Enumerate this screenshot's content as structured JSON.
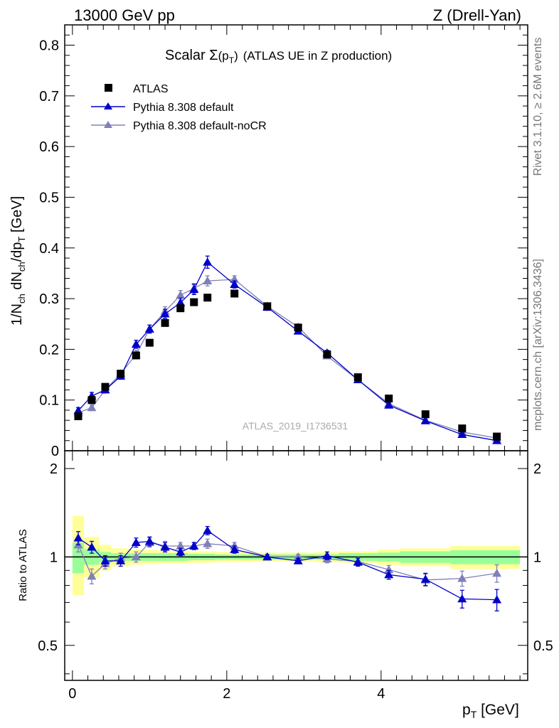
{
  "header": {
    "left": "13000 GeV pp",
    "right": "Z (Drell-Yan)"
  },
  "side_labels": {
    "rivet": "Rivet 3.1.10, ≥ 2.6M events",
    "mcplots": "mcplots.cern.ch [arXiv:1306.3436]"
  },
  "watermark": "ATLAS_2019_I1736531",
  "chart_data": [
    {
      "type": "scatter",
      "title": "Scalar Σ(pT) (ATLAS UE in Z production)",
      "title_parts": {
        "main": "Scalar Σ",
        "arg": "(p",
        "sub": "T",
        "close": ")",
        "rest": "(ATLAS UE in Z production)"
      },
      "ylabel": "1/Nch dNch/dpT [GeV]",
      "ylabel_parts": {
        "a": "1/N",
        "b": "ch",
        "c": " dN",
        "d": "ch",
        "e": "/dp",
        "f": "T",
        "g": " [GeV]"
      },
      "xlim": [
        -0.1,
        5.9
      ],
      "ylim": [
        0,
        0.84
      ],
      "yticks": [
        0,
        0.1,
        0.2,
        0.3,
        0.4,
        0.5,
        0.6,
        0.7,
        0.8
      ],
      "ytick_labels": [
        "0",
        "0.1",
        "0.2",
        "0.3",
        "0.4",
        "0.5",
        "0.6",
        "0.7",
        "0.8"
      ],
      "x": [
        0.075,
        0.25,
        0.425,
        0.625,
        0.825,
        1.0,
        1.2,
        1.4,
        1.575,
        1.75,
        2.1,
        2.525,
        2.925,
        3.3,
        3.7,
        4.1,
        4.575,
        5.05,
        5.5
      ],
      "series": [
        {
          "name": "ATLAS",
          "marker": "square",
          "color": "#000000",
          "values": [
            0.068,
            0.1,
            0.126,
            0.152,
            0.188,
            0.213,
            0.252,
            0.281,
            0.293,
            0.302,
            0.31,
            0.285,
            0.243,
            0.19,
            0.145,
            0.103,
            0.072,
            0.044,
            0.028
          ],
          "errors": [
            0.003,
            0.003,
            0.003,
            0.003,
            0.003,
            0.003,
            0.003,
            0.003,
            0.003,
            0.003,
            0.003,
            0.003,
            0.003,
            0.003,
            0.003,
            0.003,
            0.003,
            0.003,
            0.003
          ]
        },
        {
          "name": "Pythia 8.308 default",
          "marker": "triangle",
          "color": "#0000cc",
          "values": [
            0.079,
            0.108,
            0.12,
            0.147,
            0.21,
            0.24,
            0.27,
            0.292,
            0.318,
            0.372,
            0.328,
            0.283,
            0.236,
            0.193,
            0.14,
            0.09,
            0.059,
            0.032,
            0.02
          ],
          "errors": [
            0.006,
            0.007,
            0.006,
            0.006,
            0.008,
            0.008,
            0.009,
            0.009,
            0.01,
            0.012,
            0.007,
            0.006,
            0.005,
            0.005,
            0.004,
            0.004,
            0.003,
            0.003,
            0.003
          ]
        },
        {
          "name": "Pythia 8.308 default-noCR",
          "marker": "triangle",
          "color": "#8080b8",
          "values": [
            0.075,
            0.085,
            0.12,
            0.152,
            0.19,
            0.24,
            0.275,
            0.307,
            0.32,
            0.335,
            0.338,
            0.285,
            0.244,
            0.187,
            0.14,
            0.093,
            0.06,
            0.037,
            0.025
          ],
          "errors": [
            0.006,
            0.006,
            0.006,
            0.006,
            0.008,
            0.008,
            0.009,
            0.009,
            0.01,
            0.01,
            0.007,
            0.006,
            0.005,
            0.005,
            0.004,
            0.004,
            0.003,
            0.003,
            0.003
          ]
        }
      ]
    },
    {
      "type": "scatter",
      "ylabel": "Ratio to ATLAS",
      "xlabel": "pT [GeV]",
      "xlabel_parts": {
        "a": "p",
        "b": "T",
        "c": " [GeV]"
      },
      "xlim": [
        -0.1,
        5.9
      ],
      "ylim": [
        0.38,
        2.3
      ],
      "xticks": [
        0,
        2,
        4
      ],
      "xtick_labels": [
        "0",
        "2",
        "4"
      ],
      "yticks": [
        0.5,
        1,
        2
      ],
      "ytick_labels": [
        "0.5",
        "1",
        "2"
      ],
      "bins": [
        [
          0.0,
          0.15
        ],
        [
          0.15,
          0.35
        ],
        [
          0.35,
          0.5
        ],
        [
          0.5,
          0.75
        ],
        [
          0.75,
          0.9
        ],
        [
          0.9,
          1.1
        ],
        [
          1.1,
          1.3
        ],
        [
          1.3,
          1.5
        ],
        [
          1.5,
          1.65
        ],
        [
          1.65,
          1.85
        ],
        [
          1.85,
          2.35
        ],
        [
          2.35,
          2.7
        ],
        [
          2.7,
          3.15
        ],
        [
          3.15,
          3.45
        ],
        [
          3.45,
          3.95
        ],
        [
          3.95,
          4.25
        ],
        [
          4.25,
          4.9
        ],
        [
          4.9,
          5.2
        ],
        [
          5.2,
          5.8
        ]
      ],
      "band_green": [
        [
          0.88,
          1.12
        ],
        [
          0.94,
          1.06
        ],
        [
          0.96,
          1.04
        ],
        [
          0.97,
          1.03
        ],
        [
          0.97,
          1.03
        ],
        [
          0.97,
          1.03
        ],
        [
          0.97,
          1.03
        ],
        [
          0.97,
          1.03
        ],
        [
          0.975,
          1.025
        ],
        [
          0.975,
          1.025
        ],
        [
          0.98,
          1.02
        ],
        [
          0.98,
          1.02
        ],
        [
          0.98,
          1.02
        ],
        [
          0.98,
          1.02
        ],
        [
          0.97,
          1.03
        ],
        [
          0.965,
          1.035
        ],
        [
          0.955,
          1.045
        ],
        [
          0.945,
          1.055
        ],
        [
          0.945,
          1.055
        ]
      ],
      "band_yellow": [
        [
          0.74,
          1.38
        ],
        [
          0.85,
          1.17
        ],
        [
          0.9,
          1.1
        ],
        [
          0.93,
          1.07
        ],
        [
          0.94,
          1.06
        ],
        [
          0.945,
          1.055
        ],
        [
          0.95,
          1.05
        ],
        [
          0.95,
          1.05
        ],
        [
          0.955,
          1.045
        ],
        [
          0.955,
          1.045
        ],
        [
          0.96,
          1.04
        ],
        [
          0.965,
          1.035
        ],
        [
          0.965,
          1.035
        ],
        [
          0.96,
          1.04
        ],
        [
          0.955,
          1.045
        ],
        [
          0.94,
          1.06
        ],
        [
          0.93,
          1.07
        ],
        [
          0.91,
          1.09
        ],
        [
          0.91,
          1.09
        ]
      ],
      "x": [
        0.075,
        0.25,
        0.425,
        0.625,
        0.825,
        1.0,
        1.2,
        1.4,
        1.575,
        1.75,
        2.1,
        2.525,
        2.925,
        3.3,
        3.7,
        4.1,
        4.575,
        5.05,
        5.5
      ],
      "series": [
        {
          "name": "Pythia 8.308 default",
          "marker": "triangle",
          "color": "#0000cc",
          "values": [
            1.16,
            1.08,
            0.97,
            0.97,
            1.12,
            1.13,
            1.08,
            1.04,
            1.09,
            1.23,
            1.06,
            1.0,
            0.97,
            1.01,
            0.96,
            0.87,
            0.84,
            0.72,
            0.715
          ],
          "errors": [
            0.06,
            0.05,
            0.04,
            0.04,
            0.04,
            0.04,
            0.04,
            0.03,
            0.03,
            0.04,
            0.03,
            0.02,
            0.02,
            0.03,
            0.03,
            0.03,
            0.04,
            0.05,
            0.06
          ]
        },
        {
          "name": "Pythia 8.308 default-noCR",
          "marker": "triangle",
          "color": "#8080b8",
          "values": [
            1.1,
            0.86,
            0.95,
            0.99,
            1.0,
            1.12,
            1.09,
            1.09,
            1.09,
            1.11,
            1.09,
            1.0,
            1.0,
            0.985,
            0.965,
            0.905,
            0.835,
            0.845,
            0.88
          ],
          "errors": [
            0.06,
            0.05,
            0.04,
            0.04,
            0.04,
            0.04,
            0.04,
            0.03,
            0.03,
            0.04,
            0.03,
            0.02,
            0.02,
            0.03,
            0.03,
            0.03,
            0.04,
            0.05,
            0.06
          ]
        }
      ]
    }
  ]
}
